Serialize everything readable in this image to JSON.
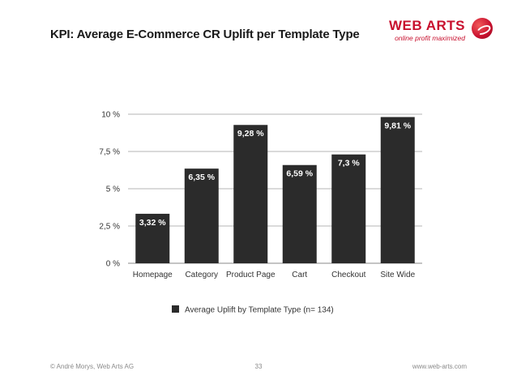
{
  "slide": {
    "title": "KPI: Average E-Commerce CR Uplift per Template Type",
    "logo_text": "WEB ARTS",
    "logo_tagline": "online profit maximized",
    "footer_left": "© André Morys, Web Arts AG",
    "footer_page": "33",
    "footer_right": "www.web-arts.com"
  },
  "colors": {
    "bar": "#2b2b2b",
    "brand": "#c8102e"
  },
  "chart_data": {
    "type": "bar",
    "categories": [
      "Homepage",
      "Category",
      "Product Page",
      "Cart",
      "Checkout",
      "Site Wide"
    ],
    "series": [
      {
        "name": "Average Uplift by Template Type (n= 134)",
        "values": [
          3.32,
          6.35,
          9.28,
          6.59,
          7.3,
          9.81
        ],
        "data_labels": [
          "3,32 %",
          "6,35 %",
          "9,28 %",
          "6,59 %",
          "7,3 %",
          "9,81 %"
        ]
      }
    ],
    "ylim": [
      0,
      10
    ],
    "yticks": [
      0,
      2.5,
      5,
      7.5,
      10
    ],
    "ytick_labels": [
      "0 %",
      "2,5 %",
      "5 %",
      "7,5 %",
      "10 %"
    ],
    "grid": true,
    "legend": "bottom"
  }
}
